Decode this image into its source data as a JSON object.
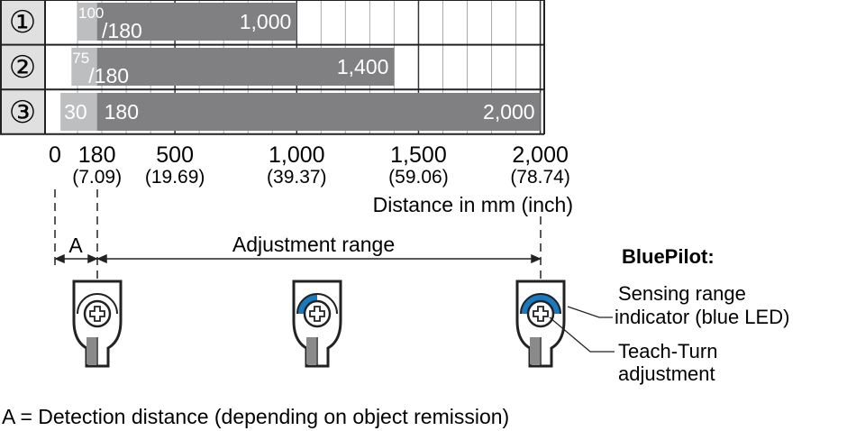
{
  "chart_data": {
    "type": "bar",
    "orientation": "horizontal range",
    "rows": [
      {
        "label": "①",
        "min_label_sup": "100",
        "min_label_sub": "180",
        "light_start": 100,
        "dark_start": 180,
        "end": 1000,
        "end_label": "1,000"
      },
      {
        "label": "②",
        "min_label_sup": "75",
        "min_label_sub": "180",
        "light_start": 75,
        "dark_start": 180,
        "end": 1400,
        "end_label": "1,400"
      },
      {
        "label": "③",
        "min_label_sup": "30",
        "min_label_sub": "180",
        "light_start": 30,
        "dark_start": 180,
        "end": 2000,
        "end_label": "2,000"
      }
    ],
    "xlim": [
      0,
      2000
    ],
    "ticks": [
      {
        "value": 0,
        "label": "0",
        "inch": ""
      },
      {
        "value": 180,
        "label": "180",
        "inch": "(7.09)"
      },
      {
        "value": 500,
        "label": "500",
        "inch": "(19.69)"
      },
      {
        "value": 1000,
        "label": "1,000",
        "inch": "(39.37)"
      },
      {
        "value": 1500,
        "label": "1,500",
        "inch": "(59.06)"
      },
      {
        "value": 2000,
        "label": "2,000",
        "inch": "(78.74)"
      }
    ],
    "xlabel": "Distance in mm (inch)",
    "grid": true
  },
  "annotations": {
    "a_label": "A",
    "adjustment_range": "Adjustment range",
    "bluepilot_title": "BluePilot:",
    "sensing_range_1": "Sensing range",
    "sensing_range_2": "indicator (blue LED)",
    "teach_turn_1": "Teach-Turn",
    "teach_turn_2": "adjustment",
    "footnote": "A = Detection distance (depending on object remission)"
  },
  "colors": {
    "dark_bar": "#808083",
    "light_bar": "#bdbec0",
    "led_blue": "#1a7ac0",
    "label_col": "#e0e0e0"
  }
}
